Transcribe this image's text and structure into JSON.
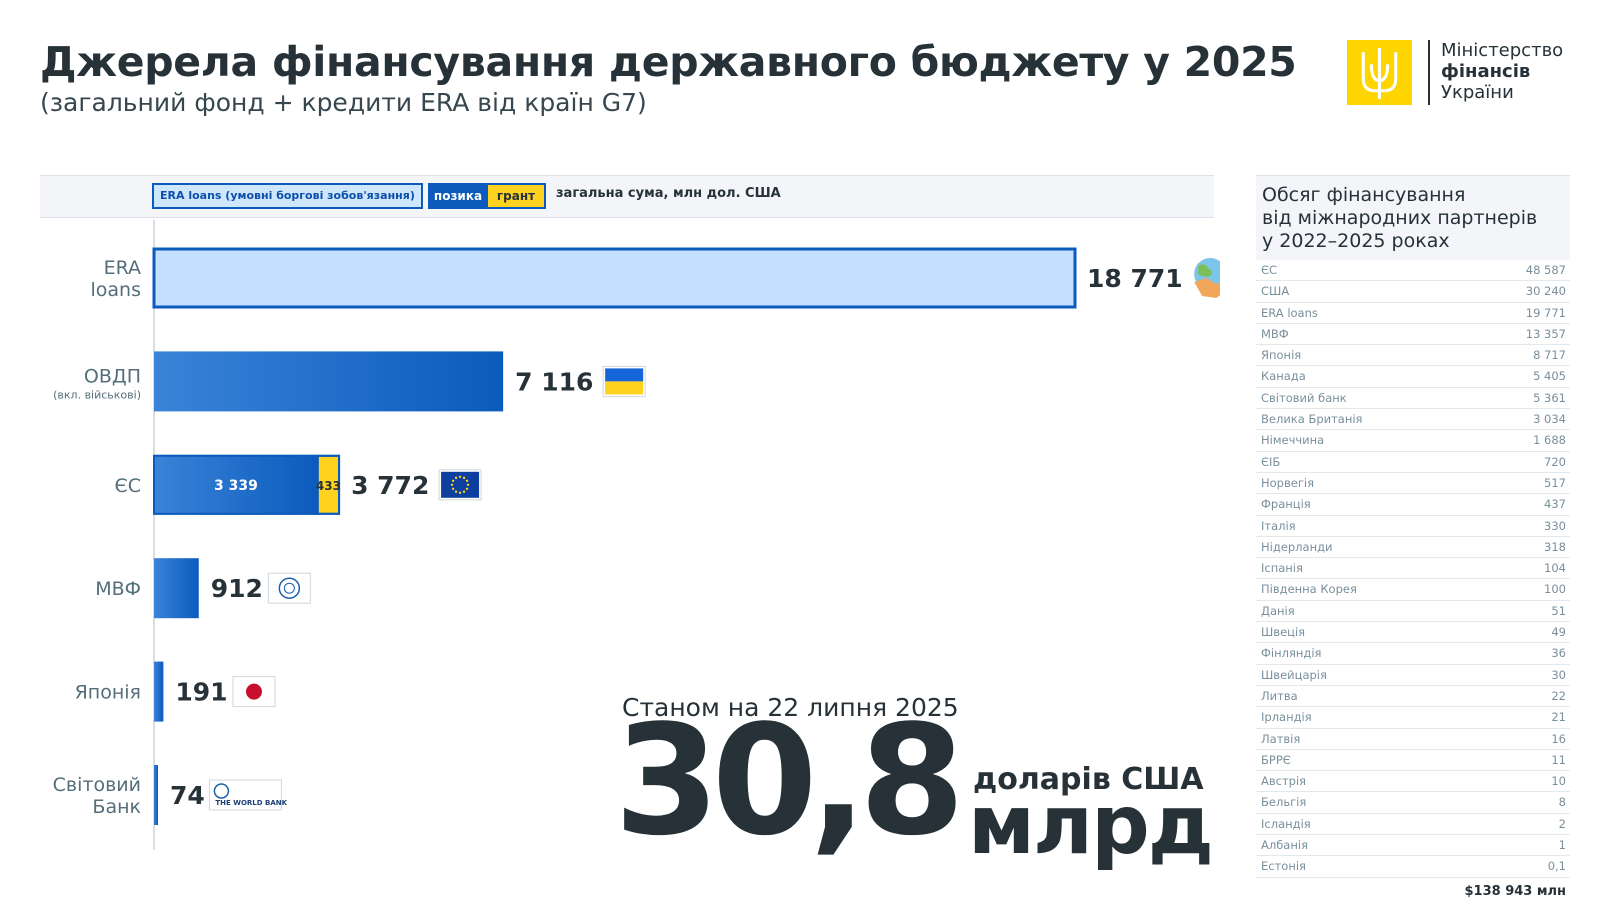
{
  "header": {
    "title": "Джерела фінансування державного бюджету у 2025",
    "subtitle": "(загальний фонд + кредити ERA від країн G7)"
  },
  "logo": {
    "line1": "Міністерство",
    "line2": "фінансів",
    "line3": "України",
    "colors": {
      "emblem_bg": "#FFD500",
      "emblem_mark": "#FFFFFF"
    }
  },
  "legend": {
    "era": "ERA loans (умовні боргові зобов'язання)",
    "loan": "позика",
    "grant": "грант",
    "total": "загальна сума, млн дол. США"
  },
  "chart_data": {
    "type": "bar",
    "orientation": "horizontal",
    "stacked": true,
    "categories": [
      {
        "label": "ERA\nloans",
        "sublabel": "",
        "icon": "handshake-globe-icon"
      },
      {
        "label": "ОВДП",
        "sublabel": "(вкл. військові)",
        "icon": "ukraine-flag-icon"
      },
      {
        "label": "ЄС",
        "sublabel": "",
        "icon": "eu-flag-icon"
      },
      {
        "label": "МВФ",
        "sublabel": "",
        "icon": "imf-logo-icon"
      },
      {
        "label": "Японія",
        "sublabel": "",
        "icon": "japan-flag-icon"
      },
      {
        "label": "Світовий\nБанк",
        "sublabel": "",
        "icon": "world-bank-logo-icon"
      }
    ],
    "series": [
      {
        "kind": "era",
        "values": [
          18771,
          0,
          0,
          0,
          0,
          0
        ]
      },
      {
        "kind": "loan",
        "values": [
          0,
          7116,
          3339,
          912,
          191,
          74
        ]
      },
      {
        "kind": "grant",
        "values": [
          0,
          0,
          433,
          0,
          0,
          0
        ]
      }
    ],
    "totals": [
      "18 771",
      "7 116",
      "3 772",
      "912",
      "191",
      "74"
    ],
    "segment_labels": [
      {
        "category": 2,
        "series": 1,
        "text": "3 339"
      },
      {
        "category": 2,
        "series": 2,
        "text": "433"
      }
    ],
    "world_bank_text": "THE WORLD BANK",
    "xlim": [
      0,
      18771
    ],
    "colors": {
      "era_fill": "#C4DFFF",
      "era_border": "#0B5BBD",
      "loan_start": "#3A83D8",
      "loan_end": "#0B5BBD",
      "grant": "#FFD21F"
    }
  },
  "stat": {
    "asof": "Станом на 22 липня 2025",
    "value": "30,8",
    "currency": "доларів США",
    "unit": "млрд"
  },
  "side_table": {
    "title_lines": [
      "Обсяг фінансування",
      "від міжнародних партнерів",
      "у 2022–2025 роках"
    ],
    "rows": [
      {
        "name": "ЄС",
        "value": "48 587"
      },
      {
        "name": "США",
        "value": "30 240"
      },
      {
        "name": "ERA loans",
        "value": "19 771"
      },
      {
        "name": "МВФ",
        "value": "13 357"
      },
      {
        "name": "Японія",
        "value": "8 717"
      },
      {
        "name": "Канада",
        "value": "5 405"
      },
      {
        "name": "Світовий банк",
        "value": "5 361"
      },
      {
        "name": "Велика Британія",
        "value": "3 034"
      },
      {
        "name": "Німеччина",
        "value": "1 688"
      },
      {
        "name": "ЄІБ",
        "value": "720"
      },
      {
        "name": "Норвегія",
        "value": "517"
      },
      {
        "name": "Франція",
        "value": "437"
      },
      {
        "name": "Італія",
        "value": "330"
      },
      {
        "name": "Нідерланди",
        "value": "318"
      },
      {
        "name": "Іспанія",
        "value": "104"
      },
      {
        "name": "Південна Корея",
        "value": "100"
      },
      {
        "name": "Данія",
        "value": "51"
      },
      {
        "name": "Швеція",
        "value": "49"
      },
      {
        "name": "Фінляндія",
        "value": "36"
      },
      {
        "name": "Швейцарія",
        "value": "30"
      },
      {
        "name": "Литва",
        "value": "22"
      },
      {
        "name": "Ірландія",
        "value": "21"
      },
      {
        "name": "Латвія",
        "value": "16"
      },
      {
        "name": "БРРЄ",
        "value": "11"
      },
      {
        "name": "Австрія",
        "value": "10"
      },
      {
        "name": "Бельгія",
        "value": "8"
      },
      {
        "name": "Ісландія",
        "value": "2"
      },
      {
        "name": "Албанія",
        "value": "1"
      },
      {
        "name": "Естонія",
        "value": "0,1"
      }
    ],
    "total": "$138 943 млн"
  }
}
